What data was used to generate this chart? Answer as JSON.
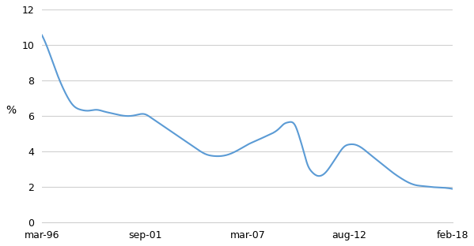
{
  "title": "",
  "ylabel": "%",
  "ylim": [
    0,
    12
  ],
  "yticks": [
    0,
    2,
    4,
    6,
    8,
    10,
    12
  ],
  "line_color": "#5B9BD5",
  "line_width": 1.5,
  "background_color": "#ffffff",
  "grid_color": "#d0d0d0",
  "xtick_labels": [
    "mar-96",
    "sep-01",
    "mar-07",
    "aug-12",
    "feb-18"
  ],
  "xtick_positions": [
    0,
    66,
    132,
    197,
    263
  ],
  "x_total_months": 263,
  "data_x": [
    0,
    5,
    10,
    15,
    20,
    25,
    30,
    35,
    40,
    45,
    50,
    55,
    60,
    66,
    70,
    75,
    80,
    85,
    90,
    95,
    100,
    105,
    110,
    115,
    120,
    125,
    130,
    132,
    137,
    142,
    147,
    152,
    155,
    158,
    162,
    165,
    168,
    170,
    173,
    176,
    179,
    182,
    185,
    188,
    191,
    194,
    197,
    200,
    205,
    210,
    215,
    220,
    225,
    230,
    235,
    240,
    245,
    250,
    255,
    258,
    261,
    263
  ],
  "data_y": [
    10.55,
    9.5,
    8.3,
    7.3,
    6.6,
    6.35,
    6.3,
    6.35,
    6.25,
    6.15,
    6.05,
    6.0,
    6.05,
    6.1,
    5.9,
    5.6,
    5.3,
    5.0,
    4.7,
    4.4,
    4.1,
    3.85,
    3.75,
    3.75,
    3.85,
    4.05,
    4.3,
    4.4,
    4.6,
    4.8,
    5.0,
    5.3,
    5.55,
    5.65,
    5.5,
    4.8,
    3.9,
    3.3,
    2.85,
    2.65,
    2.65,
    2.85,
    3.2,
    3.6,
    4.0,
    4.3,
    4.4,
    4.4,
    4.2,
    3.85,
    3.5,
    3.15,
    2.8,
    2.5,
    2.25,
    2.1,
    2.05,
    2.0,
    1.98,
    1.96,
    1.93,
    1.9
  ]
}
